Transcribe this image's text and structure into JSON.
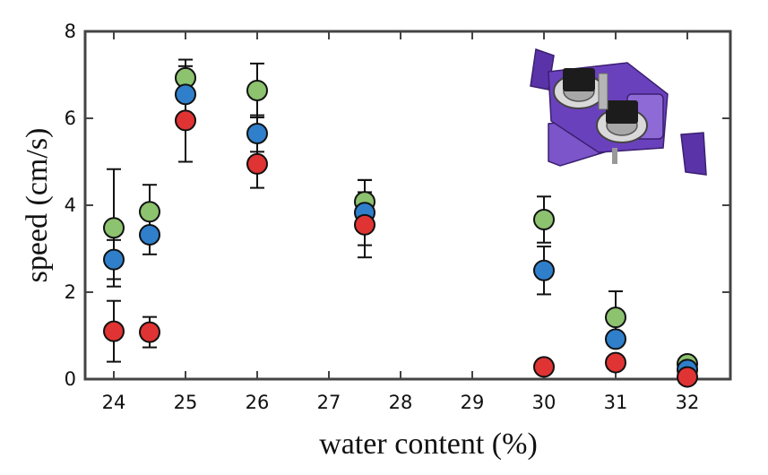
{
  "chart_data": {
    "type": "scatter",
    "xlabel": "water content (%)",
    "ylabel": "speed (cm/s)",
    "xlim": [
      23.6,
      32.6
    ],
    "ylim": [
      0,
      8
    ],
    "xticks": [
      "24",
      "25",
      "26",
      "27",
      "28",
      "29",
      "30",
      "31",
      "32"
    ],
    "yticks": [
      "0",
      "2",
      "4",
      "6",
      "8"
    ],
    "grid": false,
    "series": [
      {
        "name": "green",
        "color": "#8dc26f",
        "points": [
          {
            "x": 24,
            "y": 3.48,
            "err": 1.35
          },
          {
            "x": 24.5,
            "y": 3.85,
            "err": 0.62
          },
          {
            "x": 25,
            "y": 6.93,
            "err": 0.42
          },
          {
            "x": 26,
            "y": 6.64,
            "err": 0.62
          },
          {
            "x": 27.5,
            "y": 4.08,
            "err": 0.5
          },
          {
            "x": 30,
            "y": 3.67,
            "err": 0.53
          },
          {
            "x": 31,
            "y": 1.42,
            "err": 0.6
          },
          {
            "x": 32,
            "y": 0.35,
            "err": 0.06
          }
        ]
      },
      {
        "name": "blue",
        "color": "#2f7fcb",
        "points": [
          {
            "x": 24,
            "y": 2.75,
            "err": 0.45
          },
          {
            "x": 24.5,
            "y": 3.32,
            "err": 0.45
          },
          {
            "x": 25,
            "y": 6.55,
            "err": 0.65
          },
          {
            "x": 26,
            "y": 5.65,
            "err": 0.42
          },
          {
            "x": 27.5,
            "y": 3.83,
            "err": 0.75
          },
          {
            "x": 30,
            "y": 2.5,
            "err": 0.55
          },
          {
            "x": 31,
            "y": 0.92,
            "err": 0.1
          },
          {
            "x": 32,
            "y": 0.22,
            "err": 0.05
          }
        ]
      },
      {
        "name": "red",
        "color": "#e03333",
        "points": [
          {
            "x": 24,
            "y": 1.1,
            "err": 0.7
          },
          {
            "x": 24.5,
            "y": 1.08,
            "err": 0.35
          },
          {
            "x": 25,
            "y": 5.95,
            "err": 0.95
          },
          {
            "x": 26,
            "y": 4.95,
            "err": 0.55
          },
          {
            "x": 27.5,
            "y": 3.55,
            "err": 0.75
          },
          {
            "x": 30,
            "y": 0.28,
            "err": 0.06
          },
          {
            "x": 31,
            "y": 0.38,
            "err": 0.08
          },
          {
            "x": 32,
            "y": 0.05,
            "err": 0.02
          }
        ]
      }
    ],
    "inset": "robot-image"
  }
}
